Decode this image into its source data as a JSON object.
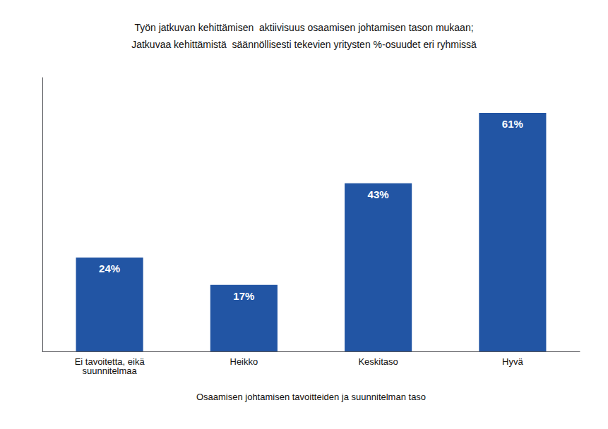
{
  "chart_data": {
    "type": "bar",
    "title": "Työn jatkuvan kehittämisen  aktiivisuus osaamisen johtamisen tason mukaan;\nJatkuvaa kehittämistä  säännöllisesti tekevien yritysten %-osuudet eri ryhmissä",
    "xlabel": "Osaamisen johtamisen tavoitteiden ja suunnitelman taso",
    "categories": [
      "Ei tavoitetta, eikä\nsuunnitelmaa",
      "Heikko",
      "Keskitaso",
      "Hyvä"
    ],
    "values": [
      24,
      17,
      43,
      61
    ],
    "value_labels": [
      "24%",
      "17%",
      "43%",
      "61%"
    ],
    "color": "#2255a4",
    "ylim": [
      0,
      70
    ],
    "grid": false,
    "data_labels": true,
    "tick_labels": "x"
  }
}
